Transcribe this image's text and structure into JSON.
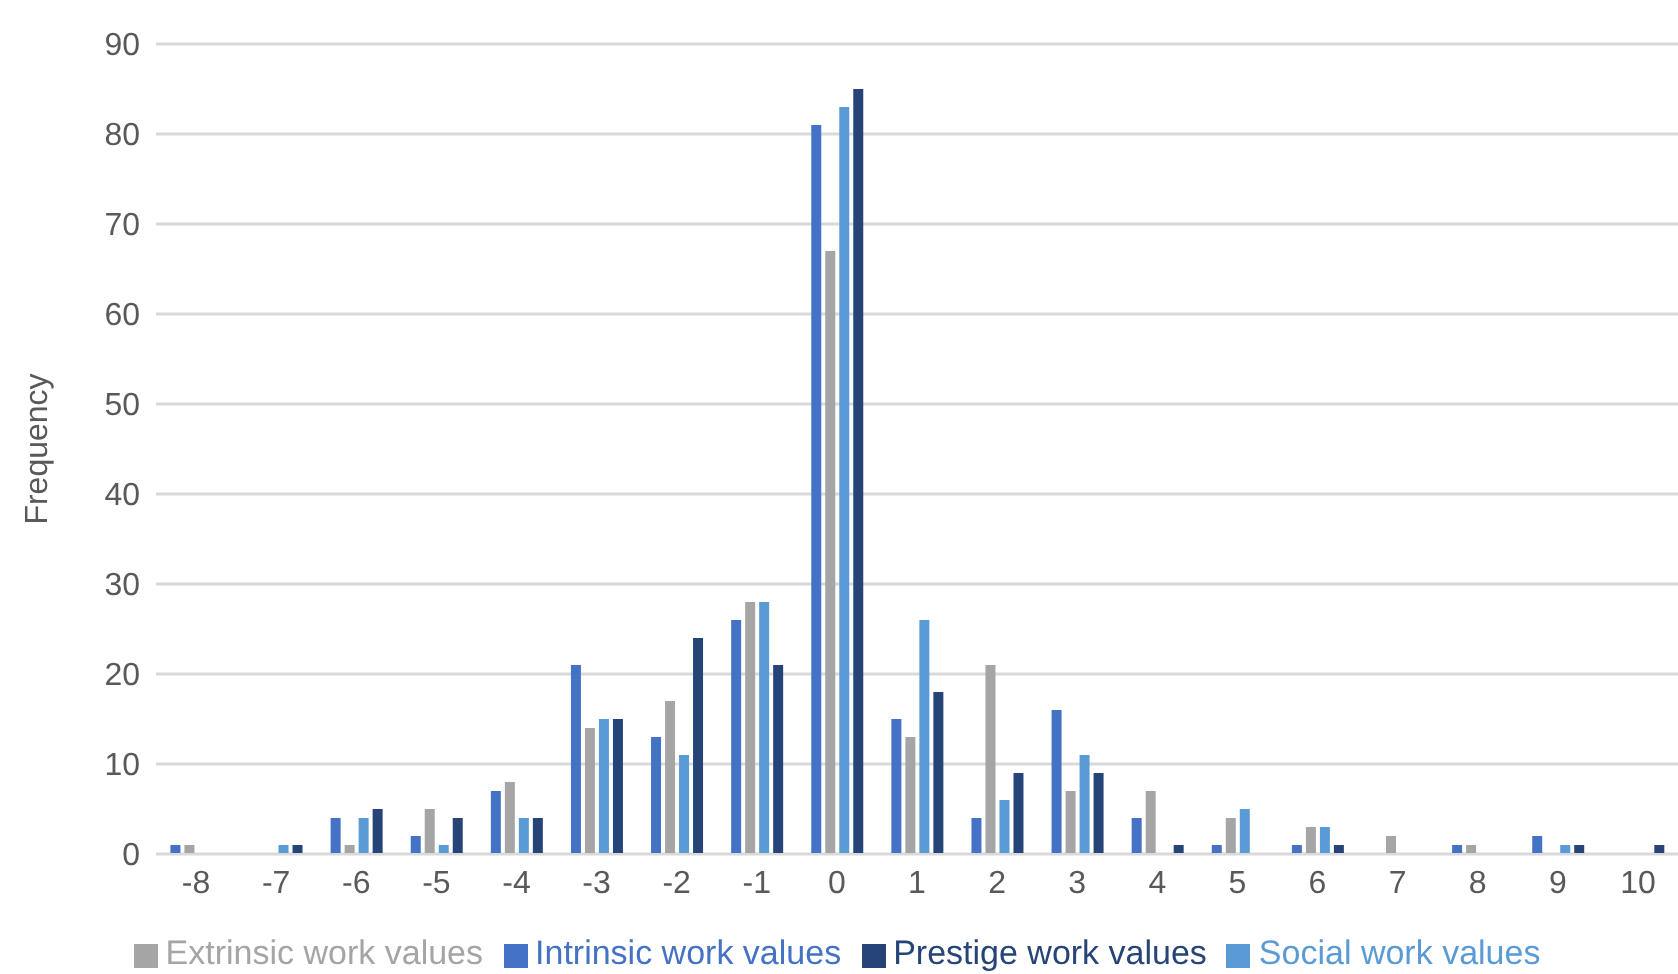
{
  "chart_data": {
    "type": "bar",
    "ylabel": "Frequency",
    "categories": [
      "-8",
      "-7",
      "-6",
      "-5",
      "-4",
      "-3",
      "-2",
      "-1",
      "0",
      "1",
      "2",
      "3",
      "4",
      "5",
      "6",
      "7",
      "8",
      "9",
      "10"
    ],
    "series": [
      {
        "name": "Intrinsic work values",
        "color": "#4472c4",
        "values": [
          1,
          0,
          4,
          2,
          7,
          21,
          13,
          26,
          81,
          15,
          4,
          16,
          4,
          1,
          1,
          0,
          1,
          2,
          0
        ]
      },
      {
        "name": "Extrinsic work values",
        "color": "#a5a5a5",
        "values": [
          1,
          0,
          1,
          5,
          8,
          14,
          17,
          28,
          67,
          13,
          21,
          7,
          7,
          4,
          3,
          2,
          1,
          0,
          0
        ]
      },
      {
        "name": "Social work values",
        "color": "#5b9bd5",
        "values": [
          0,
          1,
          4,
          1,
          4,
          15,
          11,
          28,
          83,
          26,
          6,
          11,
          0,
          5,
          3,
          0,
          0,
          1,
          0
        ]
      },
      {
        "name": "Prestige work values",
        "color": "#264478",
        "values": [
          0,
          1,
          5,
          4,
          4,
          15,
          24,
          21,
          85,
          18,
          9,
          9,
          1,
          0,
          1,
          0,
          0,
          1,
          1
        ]
      }
    ],
    "ylim": [
      0,
      90
    ],
    "yticks": [
      0,
      10,
      20,
      30,
      40,
      50,
      60,
      70,
      80,
      90
    ],
    "grid": "y",
    "legend": "bottom"
  }
}
